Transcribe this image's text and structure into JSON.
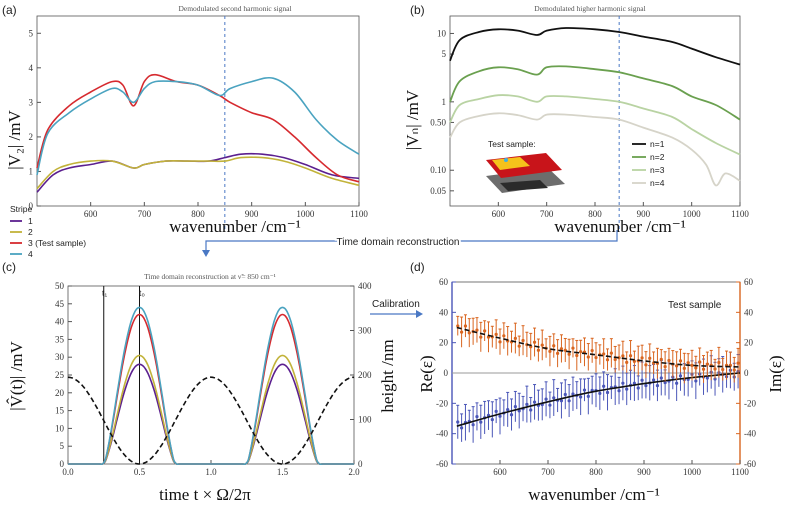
{
  "panel_labels": {
    "a": "(a)",
    "b": "(b)",
    "c": "(c)",
    "d": "(d)"
  },
  "annotations": {
    "time_domain_reconstruction": "Time domain reconstruction",
    "calibration": "Calibration",
    "stripe_legend_title": "Stripe",
    "test_sample_label": "Test sample:",
    "test_sample_d": "Test sample",
    "t1": "t₁",
    "t0": "t₀"
  },
  "colors": {
    "stripe1": "#5b1f8f",
    "stripe2": "#c2b33a",
    "stripe3": "#d62a2f",
    "stripe4": "#4aa3c0",
    "n1": "#111111",
    "n2": "#6aa04f",
    "n3": "#b9d3a3",
    "n4": "#d6d4c9",
    "re": "#4a56b8",
    "im": "#d9651f",
    "guide": "#4a78c4"
  },
  "chart_data": [
    {
      "id": "a",
      "type": "line",
      "title": "Demodulated second harmonic signal",
      "xlabel": "wavenumber /cm⁻¹",
      "ylabel": "|V₂| /mV",
      "xlim": [
        500,
        1100
      ],
      "ylim": [
        0,
        5.5
      ],
      "xticks": [
        600,
        700,
        800,
        900,
        1000,
        1100
      ],
      "yticks": [
        0,
        1,
        2,
        3,
        4,
        5
      ],
      "vline_x": 850,
      "legend_title": "Stripe",
      "legend_position": "below-left",
      "series": [
        {
          "name": "1",
          "color_key": "stripe1",
          "x": [
            500,
            530,
            560,
            600,
            640,
            680,
            700,
            740,
            780,
            820,
            850,
            880,
            920,
            960,
            1000,
            1050,
            1100
          ],
          "y": [
            0.4,
            0.9,
            1.1,
            1.2,
            1.3,
            1.1,
            1.2,
            1.3,
            1.3,
            1.3,
            1.4,
            1.5,
            1.5,
            1.4,
            1.2,
            0.9,
            0.8
          ]
        },
        {
          "name": "2",
          "color_key": "stripe2",
          "x": [
            500,
            530,
            560,
            600,
            640,
            680,
            700,
            740,
            780,
            820,
            850,
            880,
            920,
            960,
            1000,
            1050,
            1100
          ],
          "y": [
            0.5,
            1.0,
            1.2,
            1.3,
            1.3,
            1.1,
            1.2,
            1.3,
            1.3,
            1.3,
            1.3,
            1.4,
            1.4,
            1.3,
            1.1,
            0.8,
            0.6
          ]
        },
        {
          "name": "3 (Test sample)",
          "color_key": "stripe3",
          "x": [
            500,
            520,
            560,
            600,
            640,
            660,
            680,
            700,
            720,
            760,
            800,
            840,
            860,
            900,
            940,
            980,
            1020,
            1060,
            1100
          ],
          "y": [
            1.1,
            2.2,
            2.9,
            3.3,
            3.6,
            3.5,
            2.9,
            3.6,
            3.8,
            3.6,
            3.5,
            3.2,
            3.0,
            2.7,
            2.5,
            2.0,
            1.4,
            0.9,
            0.7
          ]
        },
        {
          "name": "4",
          "color_key": "stripe4",
          "x": [
            500,
            520,
            560,
            600,
            640,
            660,
            680,
            700,
            720,
            760,
            800,
            840,
            860,
            900,
            940,
            980,
            1020,
            1060,
            1100
          ],
          "y": [
            0.9,
            2.1,
            2.7,
            3.1,
            3.4,
            3.3,
            3.0,
            3.4,
            3.6,
            3.6,
            3.5,
            3.2,
            3.4,
            3.6,
            3.7,
            3.3,
            2.5,
            1.9,
            1.5
          ]
        }
      ]
    },
    {
      "id": "b",
      "type": "line",
      "title": "Demodulated higher harmonic signal",
      "xlabel": "wavenumber /cm⁻¹",
      "ylabel": "|Vₙ| /mV",
      "xlim": [
        500,
        1100
      ],
      "ylim": [
        0.03,
        18
      ],
      "yscale": "log",
      "xticks": [
        600,
        700,
        800,
        900,
        1000,
        1100
      ],
      "yticks": [
        0.05,
        0.1,
        0.5,
        1,
        5,
        10
      ],
      "ytick_labels": [
        "0.05",
        "0.10",
        "0.50",
        "1",
        "5",
        "10"
      ],
      "vline_x": 850,
      "legend_position": "right",
      "series": [
        {
          "name": "n=1",
          "color_key": "n1",
          "x": [
            500,
            520,
            560,
            600,
            640,
            680,
            700,
            740,
            800,
            850,
            900,
            960,
            1000,
            1050,
            1100
          ],
          "y": [
            4,
            8,
            10.5,
            11.5,
            11,
            9.5,
            11,
            12,
            11.5,
            10.5,
            9,
            7.5,
            6,
            4.5,
            3.5
          ]
        },
        {
          "name": "n=2",
          "color_key": "n2",
          "x": [
            500,
            520,
            560,
            600,
            640,
            680,
            700,
            740,
            800,
            850,
            900,
            960,
            1000,
            1050,
            1100
          ],
          "y": [
            1,
            2,
            2.8,
            3.2,
            3.0,
            2.5,
            3.2,
            3.3,
            3.0,
            2.7,
            2.2,
            1.7,
            1.2,
            0.9,
            0.55
          ]
        },
        {
          "name": "n=3",
          "color_key": "n3",
          "x": [
            500,
            520,
            560,
            600,
            640,
            680,
            700,
            740,
            800,
            850,
            900,
            960,
            1000,
            1050,
            1100
          ],
          "y": [
            0.5,
            0.9,
            1.1,
            1.25,
            1.2,
            1.0,
            1.2,
            1.2,
            1.1,
            1.0,
            0.8,
            0.6,
            0.4,
            0.25,
            0.17
          ]
        },
        {
          "name": "n=4",
          "color_key": "n4",
          "x": [
            500,
            520,
            560,
            600,
            640,
            680,
            700,
            740,
            800,
            850,
            900,
            960,
            1000,
            1030,
            1050,
            1070,
            1100
          ],
          "y": [
            0.3,
            0.5,
            0.62,
            0.68,
            0.64,
            0.55,
            0.65,
            0.65,
            0.6,
            0.55,
            0.42,
            0.3,
            0.2,
            0.12,
            0.06,
            0.09,
            0.07
          ]
        }
      ]
    },
    {
      "id": "c",
      "type": "line",
      "title": "Time domain reconstruction at ν̃= 850 cm⁻¹",
      "xlabel": "time t × Ω/2π",
      "ylabel": "|V̂(t)| /mV",
      "y2label": "height /nm",
      "xlim": [
        0,
        2
      ],
      "ylim": [
        0,
        50
      ],
      "y2lim": [
        0,
        400
      ],
      "xticks": [
        0.0,
        0.5,
        1.0,
        1.5,
        2.0
      ],
      "yticks": [
        0,
        5,
        10,
        15,
        20,
        25,
        30,
        35,
        40,
        45,
        50
      ],
      "y2ticks": [
        0,
        100,
        200,
        300,
        400
      ],
      "vlines_t": [
        0.25,
        0.5
      ],
      "peaks": [
        {
          "name": "1",
          "color_key": "stripe1",
          "peak": 28
        },
        {
          "name": "2",
          "color_key": "stripe2",
          "peak": 30.5
        },
        {
          "name": "3",
          "color_key": "stripe3",
          "peak": 42
        },
        {
          "name": "4",
          "color_key": "stripe4",
          "peak": 44
        }
      ],
      "height_nm": {
        "min": 0,
        "max": 195
      }
    },
    {
      "id": "d",
      "type": "scatter",
      "xlabel": "wavenumber /cm⁻¹",
      "ylabel": "Re(ε)",
      "y2label": "Im(ε)",
      "xlim": [
        500,
        1100
      ],
      "ylim": [
        -60,
        60
      ],
      "y2lim": [
        -60,
        60
      ],
      "xticks": [
        600,
        700,
        800,
        900,
        1000,
        1100
      ],
      "yticks": [
        -60,
        -40,
        -20,
        0,
        20,
        40,
        60
      ],
      "y2ticks": [
        -60,
        -40,
        -20,
        0,
        20,
        40,
        60
      ],
      "series": [
        {
          "name": "Re(ε)",
          "color_key": "re",
          "model": {
            "x": [
              510,
              600,
              700,
              800,
              900,
              1000,
              1100
            ],
            "y": [
              -35,
              -27,
              -19,
              -12,
              -7,
              -3,
              0
            ]
          },
          "error": 12
        },
        {
          "name": "Im(ε)",
          "color_key": "im",
          "model": {
            "x": [
              510,
              600,
              700,
              800,
              900,
              1000,
              1100
            ],
            "y": [
              30,
              23,
              16,
              12,
              8,
              5,
              4
            ]
          },
          "error": 10
        }
      ]
    }
  ]
}
